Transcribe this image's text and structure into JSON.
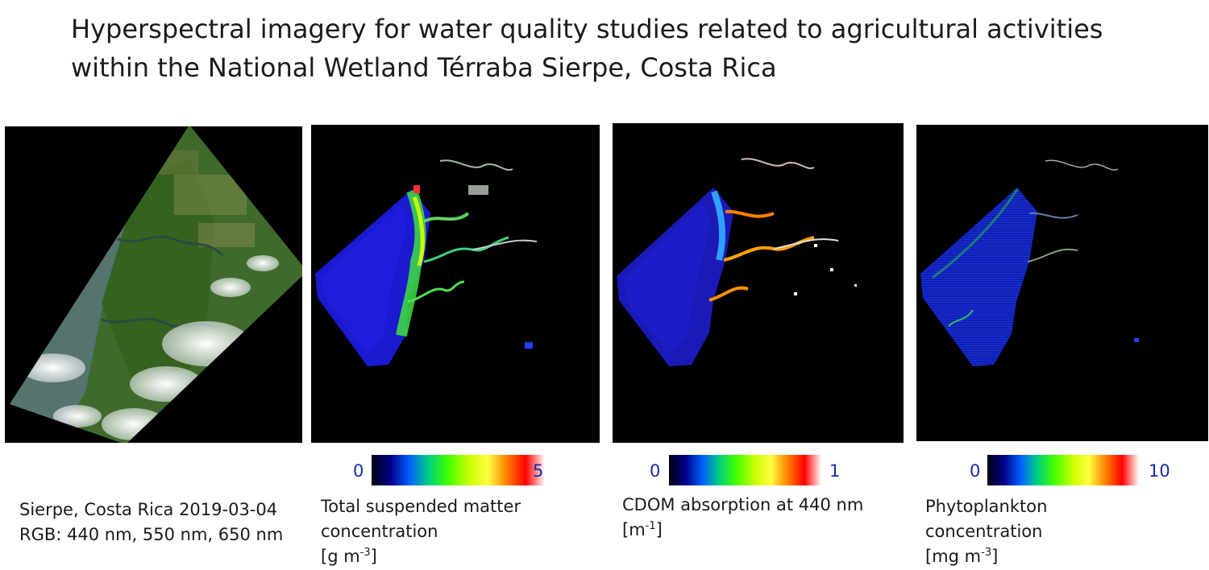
{
  "title": {
    "line1": "Hyperspectral imagery for water quality studies related to agricultural activities",
    "line2": "within the National Wetland Térraba Sierpe, Costa Rica"
  },
  "panels": [
    {
      "caption_lines": [
        "Sierpe, Costa Rica 2019-03-04",
        "RGB: 440 nm, 550 nm,  650 nm"
      ]
    },
    {
      "scale": {
        "min": "0",
        "max": "5"
      },
      "caption_lines": [
        "Total suspended matter",
        "concentration"
      ],
      "unit_prefix": "[g m",
      "unit_exp": "-3",
      "unit_suffix": "]"
    },
    {
      "scale": {
        "min": "0",
        "max": "1"
      },
      "caption_lines": [
        "CDOM absorption at 440 nm"
      ],
      "unit_prefix": "[m",
      "unit_exp": "-1",
      "unit_suffix": "]"
    },
    {
      "scale": {
        "min": "0",
        "max": "10"
      },
      "caption_lines": [
        "Phytoplankton",
        "concentration"
      ],
      "unit_prefix": "[mg m",
      "unit_exp": "-3",
      "unit_suffix": "]"
    }
  ],
  "colors": {
    "colorbar": [
      "#000010",
      "#00008a",
      "#0060ff",
      "#00d080",
      "#40ff00",
      "#c8ff00",
      "#ffff40",
      "#ff8000",
      "#ff0000",
      "#ffffff"
    ],
    "scale_text": "#1a2aa8"
  }
}
